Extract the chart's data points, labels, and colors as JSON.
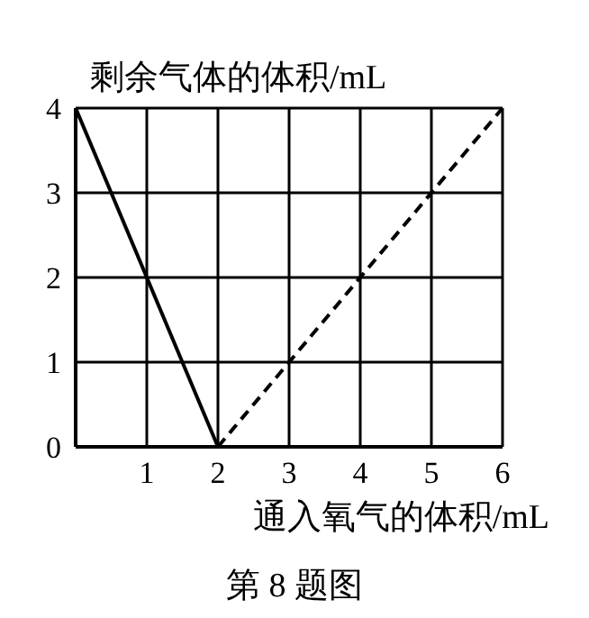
{
  "chart_data": {
    "type": "line",
    "ylabel": "剩余气体的体积/mL",
    "xlabel": "通入氧气的体积/mL",
    "annotations": [
      "第 8 题图"
    ],
    "series": [
      {
        "color": "#000000",
        "line_style": "solid",
        "x": [
          0,
          2
        ],
        "values": [
          4,
          0
        ]
      },
      {
        "color": "#000000",
        "line_style": "dashed",
        "x": [
          2,
          6
        ],
        "values": [
          0,
          4
        ]
      }
    ],
    "xlim": [
      0,
      6
    ],
    "xticks": [
      1,
      2,
      3,
      4,
      5,
      6
    ],
    "ylim": [
      0,
      4
    ],
    "yticks": [
      0,
      1,
      2,
      3,
      4
    ],
    "grid": true,
    "marker": "none"
  }
}
